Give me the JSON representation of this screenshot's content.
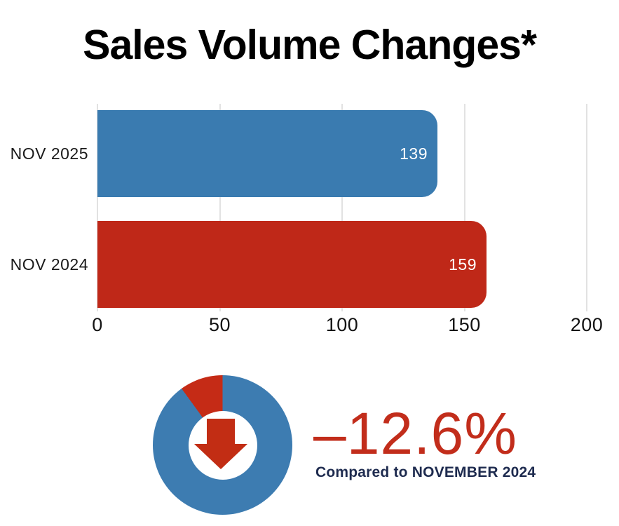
{
  "title": "Sales Volume Changes*",
  "colors": {
    "bar_blue": "#3a7bb0",
    "bar_red": "#bf2818",
    "donut_blue": "#3d7cb1",
    "donut_red": "#c52b16",
    "arrow_red": "#c22d14",
    "stat_red": "#c22d1b",
    "caption_navy": "#1e2b4f",
    "grid_gray": "#e2e2e2",
    "label_dark": "#1a1a1a",
    "value_white": "#ffffff"
  },
  "stat": {
    "value": "–12.6%",
    "caption": "Compared to NOVEMBER 2024"
  },
  "chart_data": [
    {
      "type": "bar",
      "orientation": "horizontal",
      "title": "Sales Volume Changes*",
      "categories": [
        "NOV 2025",
        "NOV 2024"
      ],
      "values": [
        139,
        159
      ],
      "value_labels": [
        "139",
        "159"
      ],
      "bar_color_keys": [
        "bar_blue",
        "bar_red"
      ],
      "xlabel": "",
      "ylabel": "",
      "xlim": [
        0,
        200
      ],
      "x_ticks": [
        0,
        50,
        100,
        150,
        200
      ],
      "grid": true,
      "legend": false
    },
    {
      "type": "pie",
      "donut": true,
      "description": "decrease indicator donut with down arrow",
      "slices": [
        {
          "name": "remainder",
          "value": 180,
          "color_key": "donut_blue"
        },
        {
          "name": "decrease",
          "value": 20,
          "color_key": "donut_red"
        }
      ],
      "start": "top",
      "decrease_slice_direction": "counterclockwise-from-top"
    }
  ]
}
